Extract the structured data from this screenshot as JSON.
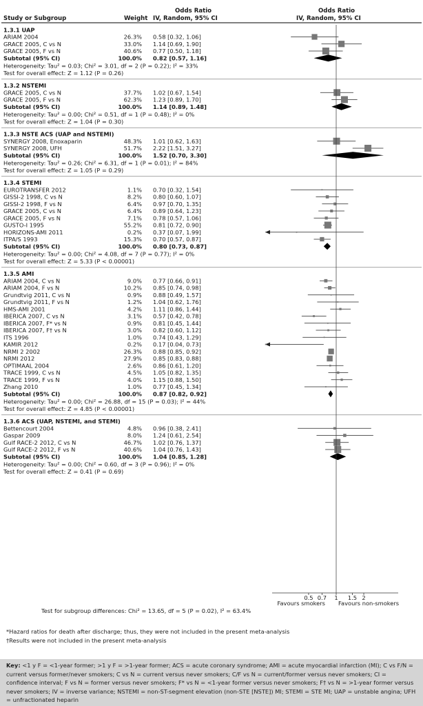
{
  "header": {
    "col_study": "Study or Subgroup",
    "col_weight": "Weight",
    "col_or_title": "Odds Ratio",
    "col_or_method": "IV, Random, 95% CI",
    "plot_title": "Odds Ratio",
    "plot_method": "IV, Random, 95% CI"
  },
  "chart_data": {
    "type": "forest",
    "scale": "log",
    "xlim": [
      0.3,
      3.2
    ],
    "ticks": [
      0.5,
      0.7,
      1,
      1.5,
      2
    ],
    "tick_labels": [
      "0.5",
      "0.7",
      "1",
      "1.5",
      "2"
    ],
    "favours_left": "Favours smokers",
    "favours_right": "Favours non-smokers",
    "overall_test": "Test for subgroup differences: Chi² = 13.65, df = 5 (P = 0.02), I² = 63.4%",
    "groups": [
      {
        "title": "1.3.1 UAP",
        "studies": [
          {
            "name": "ARIAM 2004",
            "weight": "26.3%",
            "text": "0.58 [0.32, 1.06]",
            "or": 0.58,
            "lo": 0.32,
            "hi": 1.06
          },
          {
            "name": "GRACE 2005, C vs N",
            "weight": "33.0%",
            "text": "1.14 [0.69, 1.90]",
            "or": 1.14,
            "lo": 0.69,
            "hi": 1.9
          },
          {
            "name": "GRACE 2005, F vs N",
            "weight": "40.6%",
            "text": "0.77 [0.50, 1.18]",
            "or": 0.77,
            "lo": 0.5,
            "hi": 1.18
          }
        ],
        "subtotal": {
          "label": "Subtotal (95% CI)",
          "weight": "100.0%",
          "text": "0.82 [0.57, 1.16]",
          "or": 0.82,
          "lo": 0.57,
          "hi": 1.16
        },
        "heterogeneity": "Heterogeneity: Tau² = 0.03; Chi² = 3.01, df = 2 (P = 0.22); I² = 33%",
        "overall": "Test for overall effect: Z = 1.12 (P = 0.26)"
      },
      {
        "title": "1.3.2 NSTEMI",
        "studies": [
          {
            "name": "GRACE 2005, C vs N",
            "weight": "37.7%",
            "text": "1.02 [0.67, 1.54]",
            "or": 1.02,
            "lo": 0.67,
            "hi": 1.54
          },
          {
            "name": "GRACE 2005, F vs N",
            "weight": "62.3%",
            "text": "1.23 [0.89, 1.70]",
            "or": 1.23,
            "lo": 0.89,
            "hi": 1.7
          }
        ],
        "subtotal": {
          "label": "Subtotal (95% CI)",
          "weight": "100.0%",
          "text": "1.14 [0.89, 1.48]",
          "or": 1.14,
          "lo": 0.89,
          "hi": 1.48
        },
        "heterogeneity": "Heterogeneity: Tau² = 0.00; Chi² = 0.51, df = 1 (P = 0.48); I² = 0%",
        "overall": "Test for overall effect: Z = 1.04 (P = 0.30)"
      },
      {
        "title": "1.3.3 NSTE ACS (UAP and NSTEMI)",
        "studies": [
          {
            "name": "SYNERGY 2008, Enoxaparin",
            "weight": "48.3%",
            "text": "1.01 [0.62, 1.63]",
            "or": 1.01,
            "lo": 0.62,
            "hi": 1.63
          },
          {
            "name": "SYNERGY 2008, UFH",
            "weight": "51.7%",
            "text": "2.22 [1.51, 3.27]",
            "or": 2.22,
            "lo": 1.51,
            "hi": 3.27
          }
        ],
        "subtotal": {
          "label": "Subtotal (95% CI)",
          "weight": "100.0%",
          "text": "1.52 [0.70, 3.30]",
          "or": 1.52,
          "lo": 0.7,
          "hi": 3.3
        },
        "heterogeneity": "Heterogeneity: Tau² = 0.26; Chi² = 6.31, df = 1 (P = 0.01); I² = 84%",
        "overall": "Test for overall effect: Z = 1.05 (P = 0.29)"
      },
      {
        "title": "1.3.4 STEMI",
        "studies": [
          {
            "name": "EUROTRANSFER 2012",
            "weight": "1.1%",
            "text": "0.70 [0.32, 1.54]",
            "or": 0.7,
            "lo": 0.32,
            "hi": 1.54
          },
          {
            "name": "GISSI-2 1998, C vs N",
            "weight": "8.2%",
            "text": "0.80 [0.60, 1.07]",
            "or": 0.8,
            "lo": 0.6,
            "hi": 1.07
          },
          {
            "name": "GISSI-2 1998, F vs N",
            "weight": "6.4%",
            "text": "0.97 [0.70, 1.35]",
            "or": 0.97,
            "lo": 0.7,
            "hi": 1.35
          },
          {
            "name": "GRACE 2005, C vs N",
            "weight": "6.4%",
            "text": "0.89 [0.64, 1.23]",
            "or": 0.89,
            "lo": 0.64,
            "hi": 1.23
          },
          {
            "name": "GRACE 2005, F vs N",
            "weight": "7.1%",
            "text": "0.78 [0.57, 1.06]",
            "or": 0.78,
            "lo": 0.57,
            "hi": 1.06
          },
          {
            "name": "GUSTO-I 1995",
            "weight": "55.2%",
            "text": "0.81 [0.72, 0.90]",
            "or": 0.81,
            "lo": 0.72,
            "hi": 0.9
          },
          {
            "name": "HORIZONS-AMI 2011",
            "weight": "0.2%",
            "text": "0.37 [0.07, 1.99]",
            "or": 0.37,
            "lo": 0.07,
            "hi": 1.99
          },
          {
            "name": "ITPA/S 1993",
            "weight": "15.3%",
            "text": "0.70 [0.57, 0.87]",
            "or": 0.7,
            "lo": 0.57,
            "hi": 0.87
          }
        ],
        "subtotal": {
          "label": "Subtotal (95% CI)",
          "weight": "100.0%",
          "text": "0.80 [0.73, 0.87]",
          "or": 0.8,
          "lo": 0.73,
          "hi": 0.87
        },
        "heterogeneity": "Heterogeneity: Tau² = 0.00; Chi² = 4.08, df = 7 (P = 0.77); I² = 0%",
        "overall": "Test for overall effect: Z = 5.33 (P < 0.00001)"
      },
      {
        "title": "1.3.5 AMI",
        "studies": [
          {
            "name": "ARIAM 2004, C vs N",
            "weight": "9.0%",
            "text": "0.77 [0.66, 0.91]",
            "or": 0.77,
            "lo": 0.66,
            "hi": 0.91
          },
          {
            "name": "ARIAM 2004, F vs N",
            "weight": "10.2%",
            "text": "0.85 [0.74, 0.98]",
            "or": 0.85,
            "lo": 0.74,
            "hi": 0.98
          },
          {
            "name": "Grundtvig 2011, C vs N",
            "weight": "0.9%",
            "text": "0.88 [0.49, 1.57]",
            "or": 0.88,
            "lo": 0.49,
            "hi": 1.57
          },
          {
            "name": "Grundtvig 2011, F vs N",
            "weight": "1.2%",
            "text": "1.04 [0.62, 1.76]",
            "or": 1.04,
            "lo": 0.62,
            "hi": 1.76
          },
          {
            "name": "HMS-AMI 2001",
            "weight": "4.2%",
            "text": "1.11 [0.86, 1.44]",
            "or": 1.11,
            "lo": 0.86,
            "hi": 1.44
          },
          {
            "name": "IBERICA 2007, C vs N",
            "weight": "3.1%",
            "text": "0.57 [0.42, 0.78]",
            "or": 0.57,
            "lo": 0.42,
            "hi": 0.78
          },
          {
            "name": "IBERICA 2007, F* vs N",
            "weight": "0.9%",
            "text": "0.81 [0.45, 1.44]",
            "or": 0.81,
            "lo": 0.45,
            "hi": 1.44
          },
          {
            "name": "IBERICA 2007, F† vs N",
            "weight": "3.0%",
            "text": "0.82 [0.60, 1.12]",
            "or": 0.82,
            "lo": 0.6,
            "hi": 1.12
          },
          {
            "name": "ITS 1996",
            "weight": "1.0%",
            "text": "0.74 [0.43, 1.29]",
            "or": 0.74,
            "lo": 0.43,
            "hi": 1.29
          },
          {
            "name": "KAMIR 2012",
            "weight": "0.2%",
            "text": "0.17 [0.04, 0.73]",
            "or": 0.17,
            "lo": 0.04,
            "hi": 0.73
          },
          {
            "name": "NRMI 2 2002",
            "weight": "26.3%",
            "text": "0.88 [0.85, 0.92]",
            "or": 0.88,
            "lo": 0.85,
            "hi": 0.92
          },
          {
            "name": "NRMI 2012",
            "weight": "27.9%",
            "text": "0.85 [0.83, 0.88]",
            "or": 0.85,
            "lo": 0.83,
            "hi": 0.88
          },
          {
            "name": "OPTIMAAL 2004",
            "weight": "2.6%",
            "text": "0.86 [0.61, 1.20]",
            "or": 0.86,
            "lo": 0.61,
            "hi": 1.2
          },
          {
            "name": "TRACE 1999, C vs N",
            "weight": "4.5%",
            "text": "1.05 [0.82, 1.35]",
            "or": 1.05,
            "lo": 0.82,
            "hi": 1.35
          },
          {
            "name": "TRACE 1999, F vs N",
            "weight": "4.0%",
            "text": "1.15 [0.88, 1.50]",
            "or": 1.15,
            "lo": 0.88,
            "hi": 1.5
          },
          {
            "name": "Zhang 2010",
            "weight": "1.0%",
            "text": "0.77 [0.45, 1.34]",
            "or": 0.77,
            "lo": 0.45,
            "hi": 1.34
          }
        ],
        "subtotal": {
          "label": "Subtotal (95% CI)",
          "weight": "100.0%",
          "text": "0.87 [0.82, 0.92]",
          "or": 0.87,
          "lo": 0.82,
          "hi": 0.92
        },
        "heterogeneity": "Heterogeneity: Tau² = 0.00; Chi² = 26.88, df = 15 (P = 0.03); I² = 44%",
        "overall": "Test for overall effect: Z = 4.85 (P < 0.00001)"
      },
      {
        "title": "1.3.6 ACS (UAP, NSTEMI, and STEMI)",
        "studies": [
          {
            "name": "Bettencourt 2004",
            "weight": "4.8%",
            "text": "0.96 [0.38, 2.41]",
            "or": 0.96,
            "lo": 0.38,
            "hi": 2.41
          },
          {
            "name": "Gaspar 2009",
            "weight": "8.0%",
            "text": "1.24 [0.61, 2.54]",
            "or": 1.24,
            "lo": 0.61,
            "hi": 2.54
          },
          {
            "name": "Gulf RACE-2 2012, C vs N",
            "weight": "46.7%",
            "text": "1.02 [0.76, 1.37]",
            "or": 1.02,
            "lo": 0.76,
            "hi": 1.37
          },
          {
            "name": "Gulf RACE-2 2012, F vs N",
            "weight": "40.6%",
            "text": "1.04 [0.76, 1.43]",
            "or": 1.04,
            "lo": 0.76,
            "hi": 1.43
          }
        ],
        "subtotal": {
          "label": "Subtotal (95% CI)",
          "weight": "100.0%",
          "text": "1.04 [0.85, 1.28]",
          "or": 1.04,
          "lo": 0.85,
          "hi": 1.28
        },
        "heterogeneity": "Heterogeneity: Tau² = 0.00; Chi² = 0.60, df = 3 (P = 0.96); I² = 0%",
        "overall": "Test for overall effect: Z = 0.41 (P = 0.69)"
      }
    ]
  },
  "footnotes": {
    "hazard": "*Hazard ratios for death after discharge; thus, they were not included in the present meta-analysis",
    "results": "†Results were not included in the present meta-analysis"
  },
  "key": {
    "label": "Key:",
    "text": "<1 y F = <1-year former; >1 y F = >1-year former; ACS = acute coronary syndrome; AMI = acute myocardial infarction (MI); C vs F/N = current versus former/never smokers; C vs N = current versus never smokers; C/F vs N = current/former versus never smokers; CI = confidence interval; F vs N = former versus never smokers; F* vs N = <1-year former versus never smokers; F† vs N = >1-year former versus never smokers; IV = inverse variance; NSTEMI = non-ST-segment elevation (non-STE [NSTE]) MI; STEMI = STE MI; UAP = unstable angina; UFH = unfractionated heparin"
  },
  "colors": {
    "marker": "#777777",
    "diamond": "#000000",
    "line": "#222222"
  }
}
